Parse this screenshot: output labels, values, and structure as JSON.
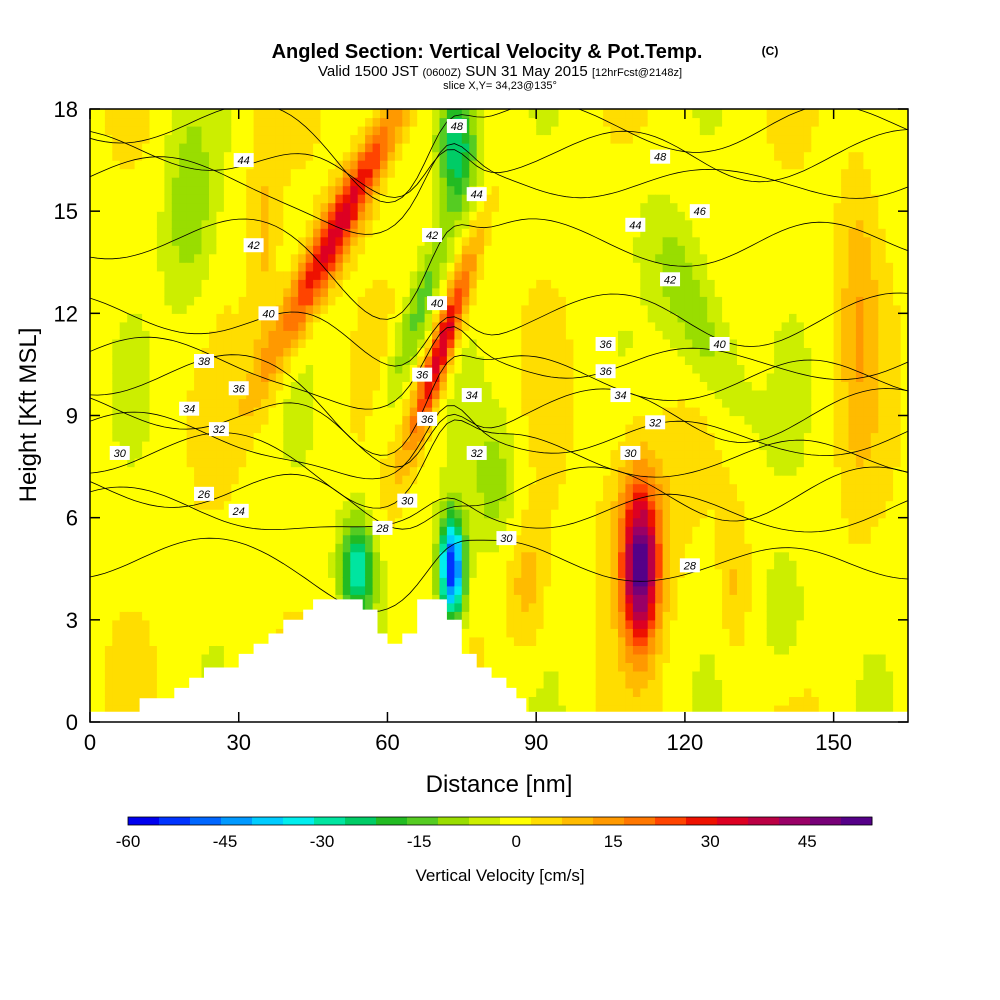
{
  "title": {
    "main": "Angled Section: Vertical Velocity & Pot.Temp.",
    "main_unit": "(C)",
    "valid": "Valid 1500 JST",
    "valid_z": "(0600Z)",
    "valid_date": "SUN 31 May 2015",
    "fcst": "[12hrFcst@2148z]",
    "slice": "slice X,Y= 34,23@135°"
  },
  "chart_data": {
    "type": "heatmap",
    "xlabel": "Distance [nm]",
    "ylabel": "Height [Kft MSL]",
    "xlim": [
      0,
      165
    ],
    "ylim": [
      0,
      18
    ],
    "xticks": [
      0,
      30,
      60,
      90,
      120,
      150
    ],
    "yticks": [
      0,
      3,
      6,
      9,
      12,
      15,
      18
    ],
    "colorbar": {
      "label": "Vertical Velocity [cm/s]",
      "range": [
        -60,
        55
      ],
      "step": 5,
      "tick_labels": [
        -60,
        -45,
        -30,
        -15,
        0,
        15,
        30,
        45
      ],
      "colors": [
        "#0000ee",
        "#0033ff",
        "#0066ff",
        "#0099ff",
        "#00ccff",
        "#00eeee",
        "#00e5a0",
        "#00cc66",
        "#22bb22",
        "#55cc22",
        "#99dd00",
        "#ccee00",
        "#ffff00",
        "#ffdd00",
        "#ffbb00",
        "#ff9900",
        "#ff7700",
        "#ff4400",
        "#ee1100",
        "#dd0022",
        "#bb0044",
        "#990066",
        "#770077",
        "#550088"
      ]
    },
    "terrain_profile": [
      [
        0,
        0.3
      ],
      [
        10,
        0.3
      ],
      [
        10,
        0.7
      ],
      [
        17,
        0.7
      ],
      [
        17,
        1
      ],
      [
        20,
        1
      ],
      [
        20,
        1.3
      ],
      [
        23,
        1.3
      ],
      [
        23,
        1.6
      ],
      [
        30,
        1.6
      ],
      [
        30,
        2
      ],
      [
        33,
        2
      ],
      [
        33,
        2.3
      ],
      [
        36,
        2.3
      ],
      [
        36,
        2.6
      ],
      [
        39,
        2.6
      ],
      [
        39,
        3
      ],
      [
        43,
        3
      ],
      [
        43,
        3.3
      ],
      [
        45,
        3.3
      ],
      [
        45,
        3.6
      ],
      [
        55,
        3.6
      ],
      [
        55,
        3.3
      ],
      [
        58,
        3.3
      ],
      [
        58,
        2.6
      ],
      [
        60,
        2.6
      ],
      [
        60,
        2.3
      ],
      [
        63,
        2.3
      ],
      [
        63,
        2.6
      ],
      [
        66,
        2.6
      ],
      [
        66,
        3.6
      ],
      [
        72,
        3.6
      ],
      [
        72,
        3
      ],
      [
        75,
        3
      ],
      [
        75,
        2
      ],
      [
        78,
        2
      ],
      [
        78,
        1.6
      ],
      [
        81,
        1.6
      ],
      [
        81,
        1.3
      ],
      [
        84,
        1.3
      ],
      [
        84,
        1
      ],
      [
        86,
        1
      ],
      [
        86,
        0.7
      ],
      [
        88,
        0.7
      ],
      [
        88,
        0.3
      ],
      [
        165,
        0.3
      ],
      [
        165,
        0
      ],
      [
        0,
        0
      ]
    ],
    "vertical_velocity_features": [
      {
        "x": 50,
        "y": 14.5,
        "sx": 4,
        "sy": 4,
        "tilt": 0.55,
        "value": 36
      },
      {
        "x": 71,
        "y": 11,
        "sx": 2.5,
        "sy": 2.8,
        "tilt": 0.35,
        "value": 38
      },
      {
        "x": 111,
        "y": 4.5,
        "sx": 3.5,
        "sy": 2.2,
        "tilt": 0,
        "value": 48
      },
      {
        "x": 111,
        "y": 6,
        "sx": 7,
        "sy": 3,
        "tilt": 0,
        "value": 12
      },
      {
        "x": 73,
        "y": 4.5,
        "sx": 2.5,
        "sy": 1.5,
        "tilt": 0,
        "value": -58
      },
      {
        "x": 54,
        "y": 4.5,
        "sx": 3.5,
        "sy": 1.5,
        "tilt": 0,
        "value": -32
      },
      {
        "x": 74,
        "y": 17,
        "sx": 4,
        "sy": 1.8,
        "tilt": 0,
        "value": -30
      },
      {
        "x": 66,
        "y": 12,
        "sx": 3,
        "sy": 3,
        "tilt": 0.35,
        "value": -15
      },
      {
        "x": 122,
        "y": 12,
        "sx": 6,
        "sy": 3,
        "tilt": -0.4,
        "value": -14
      },
      {
        "x": 20,
        "y": 15,
        "sx": 5,
        "sy": 3,
        "tilt": 0,
        "value": -12
      },
      {
        "x": 155,
        "y": 12,
        "sx": 4,
        "sy": 5,
        "tilt": 0,
        "value": 10
      },
      {
        "x": 88,
        "y": 4,
        "sx": 4,
        "sy": 2,
        "tilt": 0,
        "value": 10
      },
      {
        "x": 35,
        "y": 14,
        "sx": 3,
        "sy": 4,
        "tilt": 0,
        "value": 8
      },
      {
        "x": 82,
        "y": 7,
        "sx": 5,
        "sy": 2,
        "tilt": 0,
        "value": -10
      },
      {
        "x": 140,
        "y": 3,
        "sx": 5,
        "sy": 2,
        "tilt": 0,
        "value": -8
      },
      {
        "x": 130,
        "y": 4,
        "sx": 3,
        "sy": 2,
        "tilt": 0,
        "value": 8
      }
    ],
    "isentropes": [
      {
        "theta": 24,
        "base": 4.8
      },
      {
        "theta": 26,
        "base": 6.3
      },
      {
        "theta": 28,
        "base": 6.9
      },
      {
        "theta": 30,
        "base": 7.9
      },
      {
        "theta": 32,
        "base": 8.5
      },
      {
        "theta": 34,
        "base": 9.2
      },
      {
        "theta": 36,
        "base": 10.2
      },
      {
        "theta": 38,
        "base": 10.7
      },
      {
        "theta": 40,
        "base": 12.0
      },
      {
        "theta": 42,
        "base": 14.2
      },
      {
        "theta": 44,
        "base": 16.0
      },
      {
        "theta": 46,
        "base": 16.8
      },
      {
        "theta": 48,
        "base": 17.6
      }
    ],
    "contour_labels": [
      {
        "text": "44",
        "x": 31,
        "y": 16.5
      },
      {
        "text": "42",
        "x": 33,
        "y": 14.0
      },
      {
        "text": "40",
        "x": 36,
        "y": 12.0
      },
      {
        "text": "38",
        "x": 23,
        "y": 10.6
      },
      {
        "text": "36",
        "x": 30,
        "y": 9.8
      },
      {
        "text": "34",
        "x": 20,
        "y": 9.2
      },
      {
        "text": "32",
        "x": 26,
        "y": 8.6
      },
      {
        "text": "30",
        "x": 6,
        "y": 7.9
      },
      {
        "text": "26",
        "x": 23,
        "y": 6.7
      },
      {
        "text": "24",
        "x": 30,
        "y": 6.2
      },
      {
        "text": "28",
        "x": 59,
        "y": 5.7
      },
      {
        "text": "30",
        "x": 64,
        "y": 6.5
      },
      {
        "text": "36",
        "x": 68,
        "y": 8.9
      },
      {
        "text": "36",
        "x": 67,
        "y": 10.2
      },
      {
        "text": "40",
        "x": 70,
        "y": 12.3
      },
      {
        "text": "42",
        "x": 69,
        "y": 14.3
      },
      {
        "text": "44",
        "x": 78,
        "y": 15.5
      },
      {
        "text": "48",
        "x": 74,
        "y": 17.5
      },
      {
        "text": "34",
        "x": 77,
        "y": 9.6
      },
      {
        "text": "32",
        "x": 78,
        "y": 7.9
      },
      {
        "text": "30",
        "x": 84,
        "y": 5.4
      },
      {
        "text": "36",
        "x": 104,
        "y": 11.1
      },
      {
        "text": "36",
        "x": 104,
        "y": 10.3
      },
      {
        "text": "34",
        "x": 107,
        "y": 9.6
      },
      {
        "text": "32",
        "x": 114,
        "y": 8.8
      },
      {
        "text": "30",
        "x": 109,
        "y": 7.9
      },
      {
        "text": "28",
        "x": 121,
        "y": 4.6
      },
      {
        "text": "48",
        "x": 115,
        "y": 16.6
      },
      {
        "text": "46",
        "x": 123,
        "y": 15.0
      },
      {
        "text": "44",
        "x": 110,
        "y": 14.6
      },
      {
        "text": "42",
        "x": 117,
        "y": 13.0
      },
      {
        "text": "40",
        "x": 127,
        "y": 11.1
      }
    ]
  }
}
